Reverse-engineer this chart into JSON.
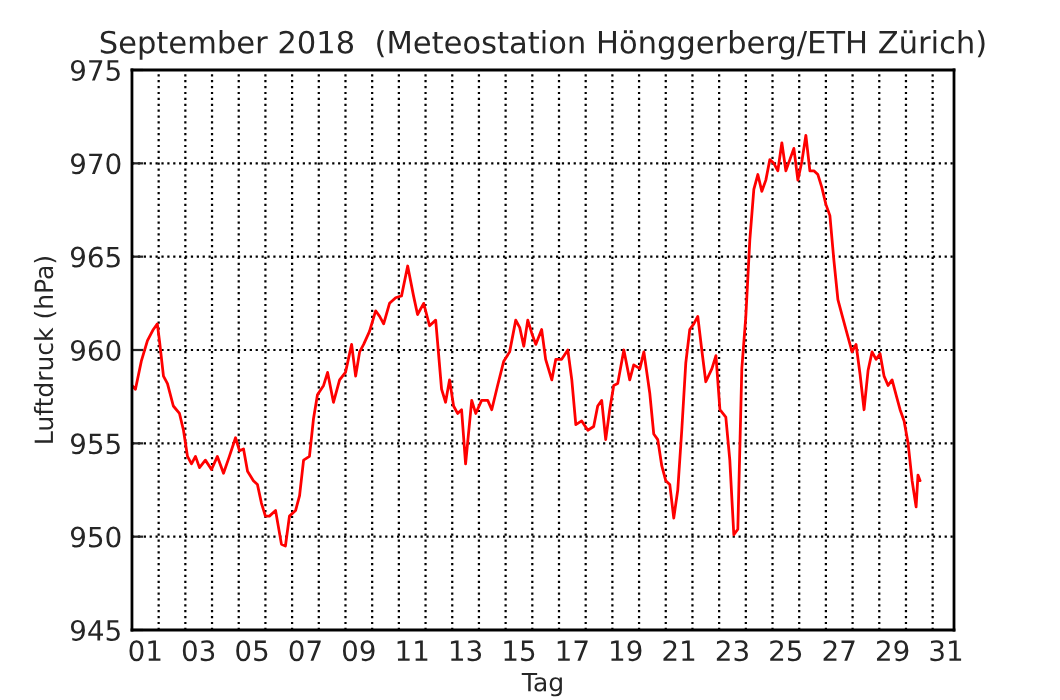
{
  "chart_data": {
    "type": "line",
    "title": "September 2018  (Meteostation Hönggerberg/ETH Zürich)",
    "xlabel": "Tag",
    "ylabel": "Luftdruck (hPa)",
    "xlim": [
      1,
      31.8
    ],
    "ylim": [
      945,
      975
    ],
    "yticks": [
      945,
      950,
      955,
      960,
      965,
      970,
      975
    ],
    "xticks": [
      {
        "value": 1.5,
        "label": "01"
      },
      {
        "value": 3.5,
        "label": "03"
      },
      {
        "value": 5.5,
        "label": "05"
      },
      {
        "value": 7.5,
        "label": "07"
      },
      {
        "value": 9.5,
        "label": "09"
      },
      {
        "value": 11.5,
        "label": "11"
      },
      {
        "value": 13.5,
        "label": "13"
      },
      {
        "value": 15.5,
        "label": "15"
      },
      {
        "value": 17.5,
        "label": "17"
      },
      {
        "value": 19.5,
        "label": "19"
      },
      {
        "value": 21.5,
        "label": "21"
      },
      {
        "value": 23.5,
        "label": "23"
      },
      {
        "value": 25.5,
        "label": "25"
      },
      {
        "value": 27.5,
        "label": "27"
      },
      {
        "value": 29.5,
        "label": "29"
      },
      {
        "value": 31.5,
        "label": "31"
      },
      {
        "value": 2,
        "label": null
      },
      {
        "value": 3,
        "label": null
      },
      {
        "value": 4,
        "label": null
      },
      {
        "value": 5,
        "label": null
      },
      {
        "value": 6,
        "label": null
      },
      {
        "value": 7,
        "label": null
      },
      {
        "value": 8,
        "label": null
      },
      {
        "value": 9,
        "label": null
      },
      {
        "value": 10,
        "label": null
      },
      {
        "value": 11,
        "label": null
      },
      {
        "value": 12,
        "label": null
      },
      {
        "value": 13,
        "label": null
      },
      {
        "value": 14,
        "label": null
      },
      {
        "value": 15,
        "label": null
      },
      {
        "value": 16,
        "label": null
      },
      {
        "value": 17,
        "label": null
      },
      {
        "value": 18,
        "label": null
      },
      {
        "value": 19,
        "label": null
      },
      {
        "value": 20,
        "label": null
      },
      {
        "value": 21,
        "label": null
      },
      {
        "value": 22,
        "label": null
      },
      {
        "value": 23,
        "label": null
      },
      {
        "value": 24,
        "label": null
      },
      {
        "value": 25,
        "label": null
      },
      {
        "value": 26,
        "label": null
      },
      {
        "value": 27,
        "label": null
      },
      {
        "value": 28,
        "label": null
      },
      {
        "value": 29,
        "label": null
      },
      {
        "value": 30,
        "label": null
      },
      {
        "value": 31,
        "label": null
      }
    ],
    "grid": true,
    "marker": "none",
    "line_style": "solid",
    "series": [
      {
        "color": "#ff0000",
        "x": [
          1.0,
          1.13,
          1.35,
          1.58,
          1.8,
          1.95,
          2.03,
          2.18,
          2.33,
          2.55,
          2.78,
          2.93,
          3.08,
          3.23,
          3.38,
          3.53,
          3.75,
          3.98,
          4.2,
          4.43,
          4.65,
          4.88,
          5.03,
          5.18,
          5.33,
          5.55,
          5.7,
          5.85,
          6.0,
          6.15,
          6.38,
          6.6,
          6.75,
          6.9,
          7.13,
          7.28,
          7.43,
          7.65,
          7.8,
          7.95,
          8.18,
          8.33,
          8.55,
          8.78,
          9.0,
          9.23,
          9.38,
          9.53,
          9.68,
          9.9,
          10.13,
          10.28,
          10.43,
          10.65,
          10.88,
          11.1,
          11.33,
          11.55,
          11.7,
          11.93,
          12.15,
          12.38,
          12.6,
          12.75,
          12.9,
          13.05,
          13.2,
          13.35,
          13.5,
          13.73,
          13.88,
          14.1,
          14.33,
          14.48,
          14.7,
          14.93,
          15.15,
          15.38,
          15.53,
          15.68,
          15.83,
          15.98,
          16.13,
          16.35,
          16.5,
          16.73,
          16.88,
          17.1,
          17.33,
          17.48,
          17.63,
          17.85,
          18.08,
          18.3,
          18.45,
          18.6,
          18.75,
          18.9,
          19.05,
          19.2,
          19.43,
          19.65,
          19.8,
          20.03,
          20.18,
          20.4,
          20.55,
          20.7,
          20.85,
          21.0,
          21.15,
          21.3,
          21.45,
          21.6,
          21.75,
          21.9,
          22.05,
          22.2,
          22.35,
          22.5,
          22.73,
          22.88,
          23.03,
          23.25,
          23.4,
          23.55,
          23.7,
          23.85,
          24.0,
          24.15,
          24.3,
          24.45,
          24.6,
          24.75,
          24.9,
          25.05,
          25.2,
          25.35,
          25.5,
          25.65,
          25.8,
          25.95,
          26.1,
          26.25,
          26.4,
          26.55,
          26.7,
          26.85,
          27.0,
          27.15,
          27.3,
          27.45,
          27.6,
          27.75,
          27.98,
          28.13,
          28.28,
          28.43,
          28.58,
          28.73,
          28.88,
          29.03,
          29.18,
          29.33,
          29.48,
          29.63,
          29.78,
          29.93,
          30.08,
          30.23,
          30.38,
          30.45,
          30.53
        ],
        "values": [
          958.1,
          957.9,
          959.4,
          960.5,
          961.1,
          961.4,
          960.5,
          958.6,
          958.2,
          957.0,
          956.6,
          955.7,
          954.3,
          953.9,
          954.3,
          953.7,
          954.1,
          953.6,
          954.3,
          953.4,
          954.3,
          955.3,
          954.6,
          954.7,
          953.5,
          953.0,
          952.8,
          951.8,
          951.1,
          951.1,
          951.4,
          949.6,
          949.5,
          951.1,
          951.4,
          952.2,
          954.1,
          954.3,
          956.3,
          957.6,
          958.1,
          958.8,
          957.2,
          958.4,
          958.8,
          960.3,
          958.6,
          959.9,
          960.3,
          961.0,
          962.1,
          961.8,
          961.4,
          962.5,
          962.8,
          962.9,
          964.5,
          962.9,
          961.9,
          962.5,
          961.3,
          961.6,
          957.9,
          957.2,
          958.4,
          957.0,
          956.6,
          956.8,
          953.9,
          957.3,
          956.6,
          957.3,
          957.3,
          956.8,
          958.1,
          959.4,
          959.9,
          961.6,
          961.2,
          960.2,
          961.6,
          960.9,
          960.3,
          961.1,
          959.5,
          958.4,
          959.5,
          959.5,
          960.0,
          958.4,
          956.0,
          956.2,
          955.7,
          955.9,
          957.0,
          957.3,
          955.2,
          956.8,
          958.1,
          958.2,
          960.0,
          958.4,
          959.2,
          959.0,
          959.9,
          957.7,
          955.5,
          955.2,
          953.8,
          953.0,
          952.8,
          951.0,
          952.5,
          955.7,
          959.3,
          961.1,
          961.4,
          961.8,
          960.0,
          958.3,
          959.0,
          959.7,
          956.8,
          956.4,
          954.1,
          950.1,
          950.4,
          959.0,
          961.8,
          965.9,
          968.6,
          969.4,
          968.5,
          969.1,
          970.2,
          970.0,
          969.6,
          971.1,
          969.6,
          970.2,
          970.8,
          969.1,
          970.1,
          971.5,
          969.6,
          969.6,
          969.4,
          968.7,
          967.8,
          967.2,
          964.8,
          962.7,
          961.9,
          961.1,
          959.9,
          960.3,
          958.7,
          956.8,
          958.9,
          959.9,
          959.5,
          959.8,
          958.6,
          958.1,
          958.4,
          957.6,
          956.8,
          956.2,
          955.0,
          953.0,
          951.6,
          953.3,
          953.0
        ]
      }
    ]
  }
}
